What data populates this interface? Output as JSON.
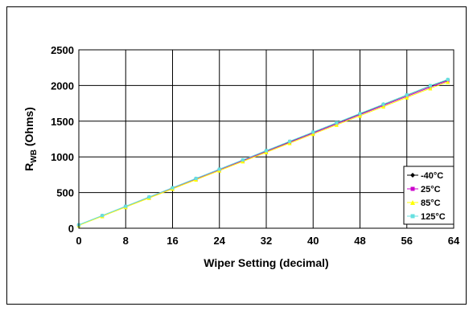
{
  "chart_data": {
    "type": "line",
    "title": "",
    "xlabel": "Wiper Setting (decimal)",
    "ylabel_main": "R",
    "ylabel_sub": "WB",
    "ylabel_rest": " (Ohms)",
    "xlim": [
      0,
      64
    ],
    "ylim": [
      0,
      2500
    ],
    "x_ticks": [
      "0",
      "8",
      "16",
      "24",
      "32",
      "40",
      "48",
      "56",
      "64"
    ],
    "y_ticks": [
      "0",
      "500",
      "1000",
      "1500",
      "2000",
      "2500"
    ],
    "grid": true,
    "legend_position": "bottom-right",
    "x": [
      0,
      4,
      8,
      12,
      16,
      20,
      24,
      28,
      32,
      36,
      40,
      44,
      48,
      52,
      56,
      60,
      63
    ],
    "series": [
      {
        "name": "-40°C",
        "color": "#000000",
        "marker": "diamond",
        "values": [
          45,
          175,
          305,
          435,
          565,
          695,
          825,
          955,
          1085,
          1215,
          1345,
          1475,
          1605,
          1735,
          1865,
          1995,
          2080
        ]
      },
      {
        "name": "25°C",
        "color": "#cc00cc",
        "marker": "square",
        "values": [
          43,
          172,
          301,
          430,
          559,
          688,
          817,
          946,
          1075,
          1204,
          1333,
          1462,
          1591,
          1720,
          1849,
          1978,
          2065
        ]
      },
      {
        "name": "85°C",
        "color": "#ffff00",
        "marker": "triangle",
        "values": [
          40,
          168,
          296,
          424,
          552,
          680,
          808,
          936,
          1064,
          1192,
          1320,
          1448,
          1576,
          1704,
          1832,
          1960,
          2050
        ]
      },
      {
        "name": "125°C",
        "color": "#66e0e0",
        "marker": "square",
        "values": [
          48,
          178,
          308,
          438,
          568,
          698,
          828,
          958,
          1088,
          1218,
          1348,
          1478,
          1608,
          1738,
          1868,
          1998,
          2085
        ]
      }
    ]
  }
}
